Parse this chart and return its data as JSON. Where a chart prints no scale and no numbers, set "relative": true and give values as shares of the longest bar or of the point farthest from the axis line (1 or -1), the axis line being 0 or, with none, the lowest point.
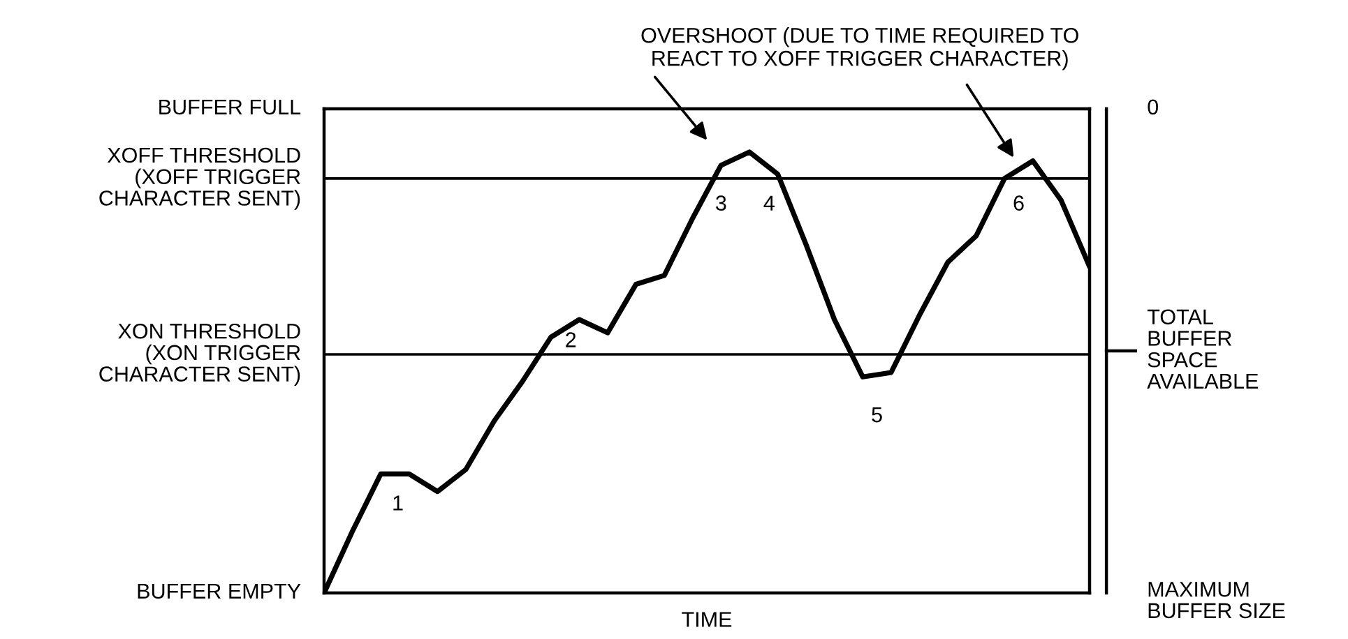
{
  "chart_data": {
    "type": "line",
    "relative": true,
    "xlabel": "TIME",
    "categories": [
      null,
      null,
      null,
      null,
      null,
      null,
      null,
      null,
      null,
      null,
      null,
      null,
      null,
      null,
      null,
      null,
      null,
      null,
      null,
      null,
      null,
      null,
      null,
      null,
      null,
      null,
      null,
      null
    ],
    "series": [
      {
        "color": "#000000",
        "values": [
          0,
          0.14,
          0.27,
          0.27,
          0.23,
          0.28,
          0.39,
          0.48,
          0.58,
          0.62,
          0.59,
          0.7,
          0.72,
          0.85,
          0.97,
          1.0,
          0.95,
          0.79,
          0.62,
          0.49,
          0.5,
          0.63,
          0.75,
          0.81,
          0.94,
          0.98,
          0.89,
          0.74
        ]
      }
    ],
    "ref_lines": [
      {
        "axis": "y",
        "value": 1.098,
        "label": "BUFFER FULL",
        "color": "#000000"
      },
      {
        "axis": "y",
        "value": 0.94,
        "label": "XOFF THRESHOLD\n(XOFF TRIGGER\nCHARACTER SENT)",
        "color": "#000000"
      },
      {
        "axis": "y",
        "value": 0.541,
        "label": "XON THRESHOLD\n(XON TRIGGER\nCHARACTER SENT)",
        "color": "#000000"
      }
    ],
    "annotations": [
      "1",
      "2",
      "3",
      "4",
      "5",
      "6",
      "OVERSHOOT (DUE TO TIME REQUIRED TO\nREACT TO XOFF TRIGGER CHARACTER)",
      "0",
      "TOTAL\nBUFFER\nSPACE\nAVAILABLE",
      "MAXIMUM\nBUFFER SIZE",
      "BUFFER EMPTY"
    ],
    "grid": false,
    "legend": false,
    "marker": "none",
    "line_style": "solid"
  }
}
